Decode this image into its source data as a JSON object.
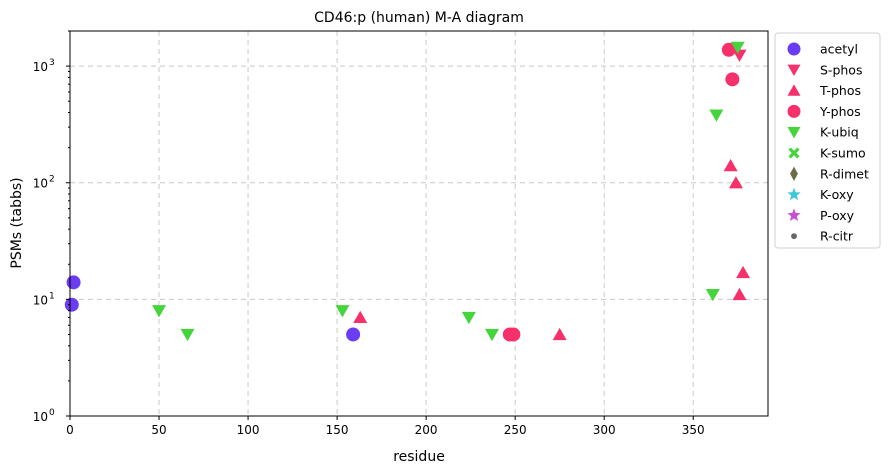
{
  "chart_data": {
    "type": "scatter",
    "title": "CD46:p (human) M-A diagram",
    "xlabel": "residue",
    "ylabel": "PSMs (tabbs)",
    "xlim": [
      0,
      392
    ],
    "ylim": [
      1,
      2000
    ],
    "yscale": "log",
    "grid": true,
    "legend_position": "outside-right",
    "x_ticks": [
      "0",
      "50",
      "100",
      "150",
      "200",
      "250",
      "300",
      "350"
    ],
    "x_tick_values": [
      0,
      50,
      100,
      150,
      200,
      250,
      300,
      350
    ],
    "y_ticks": [
      {
        "value": 1,
        "base": "10",
        "exp": "0"
      },
      {
        "value": 10,
        "base": "10",
        "exp": "1"
      },
      {
        "value": 100,
        "base": "10",
        "exp": "2"
      },
      {
        "value": 1000,
        "base": "10",
        "exp": "3"
      }
    ],
    "series": [
      {
        "name": "acetyl",
        "marker": "circle",
        "color": "#6a3cf2",
        "points": [
          [
            1,
            9
          ],
          [
            2,
            14
          ],
          [
            159,
            5
          ]
        ]
      },
      {
        "name": "S-phos",
        "marker": "triangle-down",
        "color": "#f5306a",
        "points": [
          [
            376,
            1240
          ]
        ]
      },
      {
        "name": "T-phos",
        "marker": "triangle-up",
        "color": "#f5306a",
        "points": [
          [
            163,
            7
          ],
          [
            275,
            5
          ],
          [
            371,
            140
          ],
          [
            374,
            100
          ],
          [
            376,
            11
          ],
          [
            378,
            17
          ]
        ]
      },
      {
        "name": "Y-phos",
        "marker": "circle",
        "color": "#f5306a",
        "points": [
          [
            247,
            5
          ],
          [
            249,
            5
          ],
          [
            370,
            1380
          ],
          [
            372,
            770
          ]
        ]
      },
      {
        "name": "K-ubiq",
        "marker": "triangle-down",
        "color": "#44d43c",
        "points": [
          [
            50,
            8
          ],
          [
            66,
            5
          ],
          [
            153,
            8
          ],
          [
            224,
            7
          ],
          [
            237,
            5
          ],
          [
            361,
            11
          ],
          [
            363,
            380
          ],
          [
            375,
            1450
          ]
        ]
      },
      {
        "name": "K-sumo",
        "marker": "x",
        "color": "#44d43c",
        "points": []
      },
      {
        "name": "R-dimet",
        "marker": "diamond",
        "color": "#6b6b4a",
        "points": []
      },
      {
        "name": "K-oxy",
        "marker": "star",
        "color": "#3ec9d6",
        "points": []
      },
      {
        "name": "P-oxy",
        "marker": "star",
        "color": "#c64fd6",
        "points": []
      },
      {
        "name": "R-citr",
        "marker": "dot",
        "color": "#666666",
        "points": []
      }
    ]
  }
}
